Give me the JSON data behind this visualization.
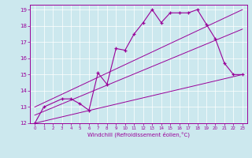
{
  "xlabel": "Windchill (Refroidissement éolien,°C)",
  "bg_color": "#cce8ee",
  "line_color": "#990099",
  "xlim": [
    -0.5,
    23.5
  ],
  "ylim": [
    12,
    19.3
  ],
  "xticks": [
    0,
    1,
    2,
    3,
    4,
    5,
    6,
    7,
    8,
    9,
    10,
    11,
    12,
    13,
    14,
    15,
    16,
    17,
    18,
    19,
    20,
    21,
    22,
    23
  ],
  "yticks": [
    12,
    13,
    14,
    15,
    16,
    17,
    18,
    19
  ],
  "series1_x": [
    0,
    1,
    3,
    4,
    5,
    6,
    7,
    8,
    9,
    10,
    11,
    12,
    13,
    14,
    15,
    16,
    17,
    18,
    19,
    20,
    21,
    22,
    23
  ],
  "series1_y": [
    12.0,
    13.0,
    13.5,
    13.5,
    13.2,
    12.8,
    15.1,
    14.4,
    16.6,
    16.5,
    17.5,
    18.2,
    19.0,
    18.2,
    18.8,
    18.8,
    18.8,
    19.0,
    18.1,
    17.2,
    15.7,
    15.0,
    15.0
  ],
  "line1_x": [
    0,
    23
  ],
  "line1_y": [
    12.0,
    15.0
  ],
  "line2_x": [
    0,
    23
  ],
  "line2_y": [
    12.5,
    17.8
  ],
  "line3_x": [
    0,
    23
  ],
  "line3_y": [
    13.0,
    19.0
  ]
}
